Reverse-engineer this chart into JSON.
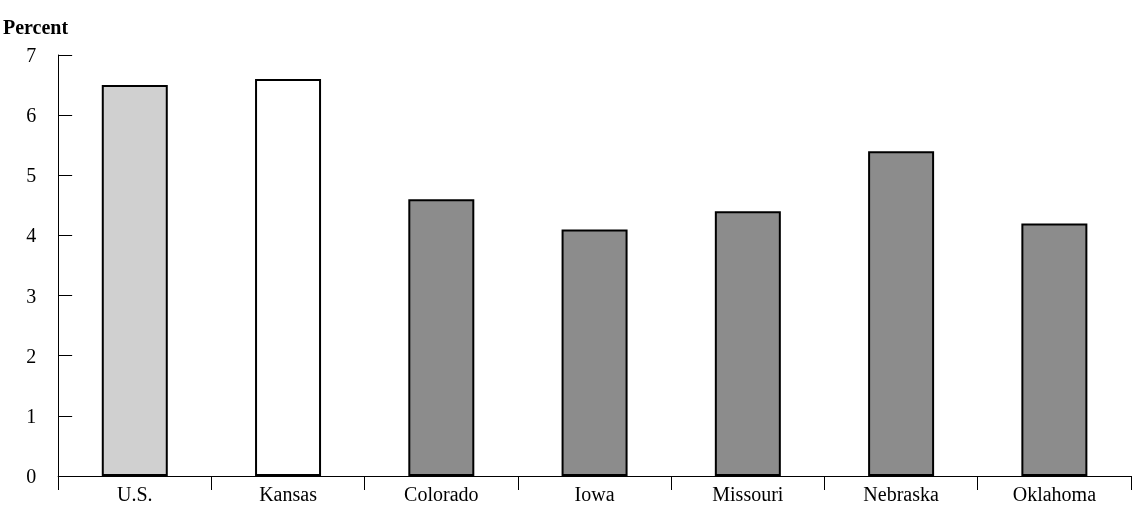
{
  "chart_data": {
    "type": "bar",
    "ylabel": "Percent",
    "categories": [
      "U.S.",
      "Kansas",
      "Colorado",
      "Iowa",
      "Missouri",
      "Nebraska",
      "Oklahoma"
    ],
    "values": [
      6.5,
      6.6,
      4.6,
      4.1,
      4.4,
      5.4,
      4.2
    ],
    "colors": [
      "#d0d0d0",
      "#ffffff",
      "#8c8c8c",
      "#8c8c8c",
      "#8c8c8c",
      "#8c8c8c",
      "#8c8c8c"
    ],
    "ylim": [
      0,
      7
    ],
    "yticks": [
      0,
      1,
      2,
      3,
      4,
      5,
      6,
      7
    ]
  }
}
